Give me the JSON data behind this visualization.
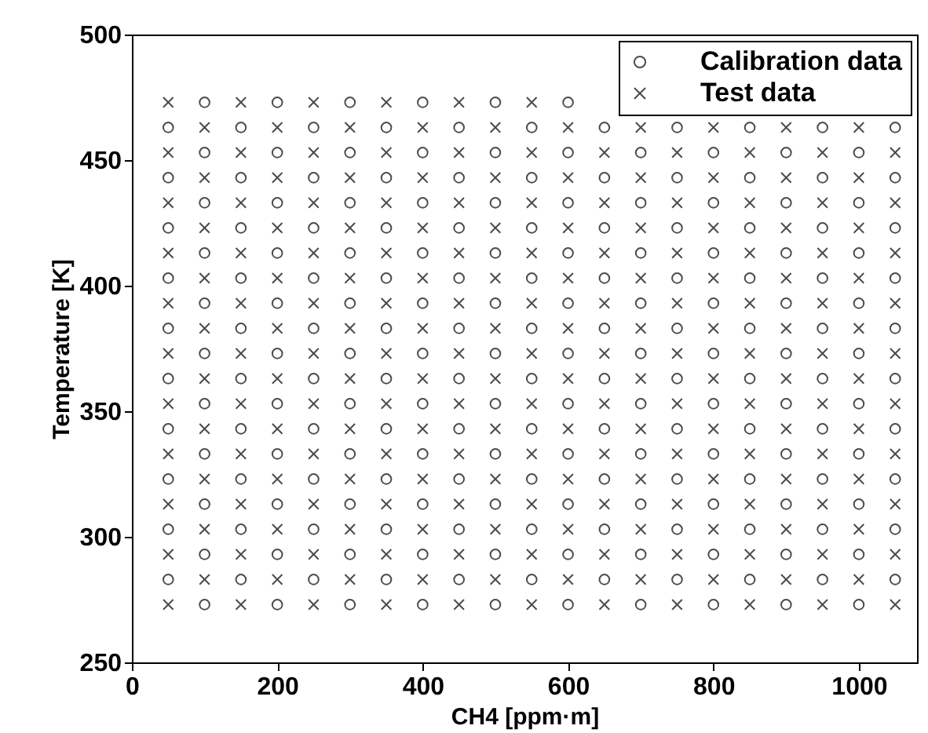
{
  "chart_data": {
    "type": "scatter",
    "xlabel": "CH4 [ppm·m]",
    "ylabel": "Temperature [K]",
    "xlim": [
      0,
      1080
    ],
    "ylim": [
      250,
      500
    ],
    "xticks": [
      0,
      200,
      400,
      600,
      800,
      1000
    ],
    "yticks": [
      250,
      300,
      350,
      400,
      450,
      500
    ],
    "grid": false,
    "legend": "top right",
    "series": [
      {
        "name": "Calibration data",
        "color": "#000000",
        "marker": "circle",
        "x": [
          100,
          200,
          300,
          400,
          500,
          600,
          700,
          800,
          900,
          1000,
          50,
          150,
          250,
          350,
          450,
          550,
          650,
          750,
          850,
          950,
          1050,
          100,
          200,
          300,
          400,
          500,
          600,
          700,
          800,
          900,
          1000,
          50,
          150,
          250,
          350,
          450,
          550,
          650,
          750,
          850,
          950,
          1050,
          100,
          200,
          300,
          400,
          500,
          600,
          700,
          800,
          900,
          1000,
          50,
          150,
          250,
          350,
          450,
          550,
          650,
          750,
          850,
          950,
          1050,
          100,
          200,
          300,
          400,
          500,
          600,
          700,
          800,
          900,
          1000,
          50,
          150,
          250,
          350,
          450,
          550,
          650,
          750,
          850,
          950,
          1050,
          100,
          200,
          300,
          400,
          500,
          600,
          700,
          800,
          900,
          1000,
          50,
          150,
          250,
          350,
          450,
          550,
          650,
          750,
          850,
          950,
          1050,
          100,
          200,
          300,
          400,
          500,
          600,
          700,
          800,
          900,
          1000,
          50,
          150,
          250,
          350,
          450,
          550,
          650,
          750,
          850,
          950,
          1050,
          100,
          200,
          300,
          400,
          500,
          600,
          700,
          800,
          900,
          1000,
          50,
          150,
          250,
          350,
          450,
          550,
          650,
          750,
          850,
          950,
          1050,
          100,
          200,
          300,
          400,
          500,
          600,
          700,
          800,
          900,
          1000,
          50,
          150,
          250,
          350,
          450,
          550,
          650,
          750,
          850,
          950,
          1050,
          100,
          200,
          300,
          400,
          500,
          600,
          700,
          800,
          900,
          1000,
          50,
          150,
          250,
          350,
          450,
          550,
          650,
          750,
          850,
          950,
          1050,
          100,
          200,
          300,
          400,
          500,
          600,
          700,
          800,
          900,
          1000,
          50,
          150,
          250,
          350,
          450,
          550,
          650,
          750,
          850,
          950,
          1050,
          100,
          200,
          300,
          400,
          500,
          600
        ],
        "values": [
          273,
          273,
          273,
          273,
          273,
          273,
          273,
          273,
          273,
          273,
          283,
          283,
          283,
          283,
          283,
          283,
          283,
          283,
          283,
          283,
          283,
          293,
          293,
          293,
          293,
          293,
          293,
          293,
          293,
          293,
          293,
          303,
          303,
          303,
          303,
          303,
          303,
          303,
          303,
          303,
          303,
          303,
          313,
          313,
          313,
          313,
          313,
          313,
          313,
          313,
          313,
          313,
          323,
          323,
          323,
          323,
          323,
          323,
          323,
          323,
          323,
          323,
          323,
          333,
          333,
          333,
          333,
          333,
          333,
          333,
          333,
          333,
          333,
          343,
          343,
          343,
          343,
          343,
          343,
          343,
          343,
          343,
          343,
          343,
          353,
          353,
          353,
          353,
          353,
          353,
          353,
          353,
          353,
          353,
          363,
          363,
          363,
          363,
          363,
          363,
          363,
          363,
          363,
          363,
          363,
          373,
          373,
          373,
          373,
          373,
          373,
          373,
          373,
          373,
          373,
          383,
          383,
          383,
          383,
          383,
          383,
          383,
          383,
          383,
          383,
          383,
          393,
          393,
          393,
          393,
          393,
          393,
          393,
          393,
          393,
          393,
          403,
          403,
          403,
          403,
          403,
          403,
          403,
          403,
          403,
          403,
          403,
          413,
          413,
          413,
          413,
          413,
          413,
          413,
          413,
          413,
          413,
          423,
          423,
          423,
          423,
          423,
          423,
          423,
          423,
          423,
          423,
          423,
          433,
          433,
          433,
          433,
          433,
          433,
          433,
          433,
          433,
          433,
          443,
          443,
          443,
          443,
          443,
          443,
          443,
          443,
          443,
          443,
          443,
          453,
          453,
          453,
          453,
          453,
          453,
          453,
          453,
          453,
          453,
          463,
          463,
          463,
          463,
          463,
          463,
          463,
          463,
          463,
          463,
          463,
          473,
          473,
          473,
          473,
          473,
          473
        ]
      },
      {
        "name": "Test data",
        "color": "#000000",
        "marker": "cross",
        "x": [
          50,
          150,
          250,
          350,
          450,
          550,
          650,
          750,
          850,
          950,
          1050,
          100,
          200,
          300,
          400,
          500,
          600,
          700,
          800,
          900,
          1000,
          50,
          150,
          250,
          350,
          450,
          550,
          650,
          750,
          850,
          950,
          1050,
          100,
          200,
          300,
          400,
          500,
          600,
          700,
          800,
          900,
          1000,
          50,
          150,
          250,
          350,
          450,
          550,
          650,
          750,
          850,
          950,
          1050,
          100,
          200,
          300,
          400,
          500,
          600,
          700,
          800,
          900,
          1000,
          50,
          150,
          250,
          350,
          450,
          550,
          650,
          750,
          850,
          950,
          1050,
          100,
          200,
          300,
          400,
          500,
          600,
          700,
          800,
          900,
          1000,
          50,
          150,
          250,
          350,
          450,
          550,
          650,
          750,
          850,
          950,
          1050,
          100,
          200,
          300,
          400,
          500,
          600,
          700,
          800,
          900,
          1000,
          50,
          150,
          250,
          350,
          450,
          550,
          650,
          750,
          850,
          950,
          1050,
          100,
          200,
          300,
          400,
          500,
          600,
          700,
          800,
          900,
          1000,
          50,
          150,
          250,
          350,
          450,
          550,
          650,
          750,
          850,
          950,
          1050,
          100,
          200,
          300,
          400,
          500,
          600,
          700,
          800,
          900,
          1000,
          50,
          150,
          250,
          350,
          450,
          550,
          650,
          750,
          850,
          950,
          1050,
          100,
          200,
          300,
          400,
          500,
          600,
          700,
          800,
          900,
          1000,
          50,
          150,
          250,
          350,
          450,
          550,
          650,
          750,
          850,
          950,
          1050,
          100,
          200,
          300,
          400,
          500,
          600,
          700,
          800,
          900,
          1000,
          50,
          150,
          250,
          350,
          450,
          550,
          650,
          750,
          850,
          950,
          1050,
          100,
          200,
          300,
          400,
          500,
          600,
          700,
          800,
          900,
          1000,
          50,
          150,
          250,
          350,
          450,
          550
        ],
        "values": [
          273,
          273,
          273,
          273,
          273,
          273,
          273,
          273,
          273,
          273,
          273,
          283,
          283,
          283,
          283,
          283,
          283,
          283,
          283,
          283,
          283,
          293,
          293,
          293,
          293,
          293,
          293,
          293,
          293,
          293,
          293,
          293,
          303,
          303,
          303,
          303,
          303,
          303,
          303,
          303,
          303,
          303,
          313,
          313,
          313,
          313,
          313,
          313,
          313,
          313,
          313,
          313,
          313,
          323,
          323,
          323,
          323,
          323,
          323,
          323,
          323,
          323,
          323,
          333,
          333,
          333,
          333,
          333,
          333,
          333,
          333,
          333,
          333,
          333,
          343,
          343,
          343,
          343,
          343,
          343,
          343,
          343,
          343,
          343,
          353,
          353,
          353,
          353,
          353,
          353,
          353,
          353,
          353,
          353,
          353,
          363,
          363,
          363,
          363,
          363,
          363,
          363,
          363,
          363,
          363,
          373,
          373,
          373,
          373,
          373,
          373,
          373,
          373,
          373,
          373,
          373,
          383,
          383,
          383,
          383,
          383,
          383,
          383,
          383,
          383,
          383,
          393,
          393,
          393,
          393,
          393,
          393,
          393,
          393,
          393,
          393,
          393,
          403,
          403,
          403,
          403,
          403,
          403,
          403,
          403,
          403,
          403,
          413,
          413,
          413,
          413,
          413,
          413,
          413,
          413,
          413,
          413,
          413,
          423,
          423,
          423,
          423,
          423,
          423,
          423,
          423,
          423,
          423,
          433,
          433,
          433,
          433,
          433,
          433,
          433,
          433,
          433,
          433,
          433,
          443,
          443,
          443,
          443,
          443,
          443,
          443,
          443,
          443,
          443,
          453,
          453,
          453,
          453,
          453,
          453,
          453,
          453,
          453,
          453,
          453,
          463,
          463,
          463,
          463,
          463,
          463,
          463,
          463,
          463,
          463,
          473,
          473,
          473,
          473,
          473,
          473
        ]
      }
    ]
  }
}
